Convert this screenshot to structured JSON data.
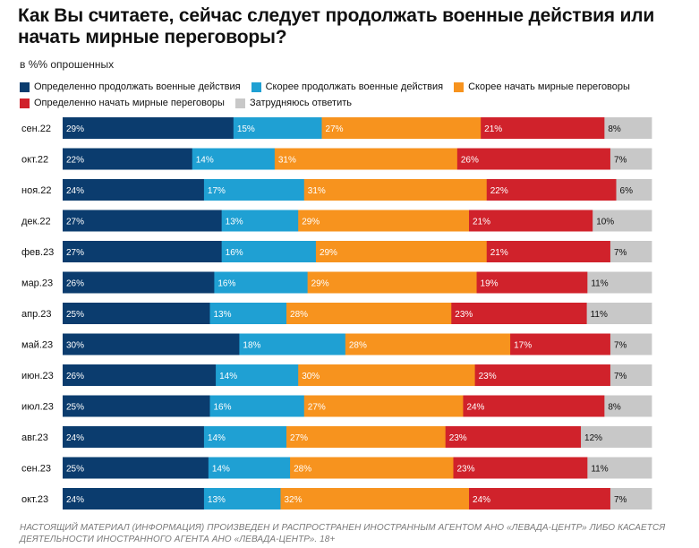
{
  "title": "Как Вы считаете, сейчас следует продолжать военные действия или начать мирные переговоры?",
  "subtitle": "в %% опрошенных",
  "footer": "НАСТОЯЩИЙ МАТЕРИАЛ (ИНФОРМАЦИЯ) ПРОИЗВЕДЕН И РАСПРОСТРАНЕН ИНОСТРАННЫМ АГЕНТОМ АНО «ЛЕВАДА-ЦЕНТР» ЛИБО КАСАЕТСЯ ДЕЯТЕЛЬНОСТИ ИНОСТРАННОГО АГЕНТА АНО «ЛЕВАДА-ЦЕНТР». 18+",
  "chart_data": {
    "type": "bar",
    "orientation": "horizontal",
    "stacked": true,
    "categories": [
      "сен.22",
      "окт.22",
      "ноя.22",
      "дек.22",
      "фев.23",
      "мар.23",
      "апр.23",
      "май.23",
      "июн.23",
      "июл.23",
      "авг.23",
      "сен.23",
      "окт.23"
    ],
    "series": [
      {
        "name": "Определенно продолжать военные действия",
        "color": "#0b3c6e",
        "label_color": "#ffffff",
        "values": [
          29,
          22,
          24,
          27,
          27,
          26,
          25,
          30,
          26,
          25,
          24,
          25,
          24
        ]
      },
      {
        "name": "Скорее продолжать военные действия",
        "color": "#1fa0d3",
        "label_color": "#ffffff",
        "values": [
          15,
          14,
          17,
          13,
          16,
          16,
          13,
          18,
          14,
          16,
          14,
          14,
          13
        ]
      },
      {
        "name": "Скорее начать мирные переговоры",
        "color": "#f7931e",
        "label_color": "#ffffff",
        "values": [
          27,
          31,
          31,
          29,
          29,
          29,
          28,
          28,
          30,
          27,
          27,
          28,
          32
        ]
      },
      {
        "name": "Определенно начать мирные переговоры",
        "color": "#d0222b",
        "label_color": "#ffffff",
        "values": [
          21,
          26,
          22,
          21,
          21,
          19,
          23,
          17,
          23,
          24,
          23,
          23,
          24
        ]
      },
      {
        "name": "Затрудняюсь ответить",
        "color": "#c8c8c8",
        "label_color": "#111111",
        "values": [
          8,
          7,
          6,
          10,
          7,
          11,
          11,
          7,
          7,
          8,
          12,
          11,
          7
        ]
      }
    ],
    "value_suffix": "%",
    "legend_position": "top-left",
    "grid": false
  }
}
